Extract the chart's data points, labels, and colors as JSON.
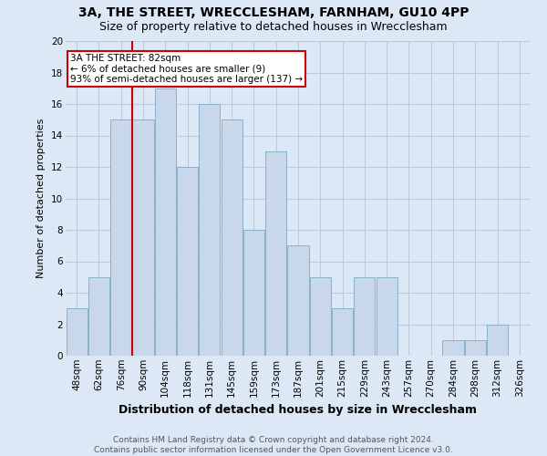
{
  "title1": "3A, THE STREET, WRECCLESHAM, FARNHAM, GU10 4PP",
  "title2": "Size of property relative to detached houses in Wrecclesham",
  "xlabel": "Distribution of detached houses by size in Wrecclesham",
  "ylabel": "Number of detached properties",
  "footer1": "Contains HM Land Registry data © Crown copyright and database right 2024.",
  "footer2": "Contains public sector information licensed under the Open Government Licence v3.0.",
  "categories": [
    "48sqm",
    "62sqm",
    "76sqm",
    "90sqm",
    "104sqm",
    "118sqm",
    "131sqm",
    "145sqm",
    "159sqm",
    "173sqm",
    "187sqm",
    "201sqm",
    "215sqm",
    "229sqm",
    "243sqm",
    "257sqm",
    "270sqm",
    "284sqm",
    "298sqm",
    "312sqm",
    "326sqm"
  ],
  "values": [
    3,
    5,
    15,
    15,
    17,
    12,
    16,
    15,
    8,
    13,
    7,
    5,
    3,
    5,
    5,
    0,
    0,
    1,
    1,
    2,
    0
  ],
  "bar_color": "#c8d8ea",
  "bar_edge_color": "#7bacc4",
  "vline_color": "#cc0000",
  "annotation_text1": "3A THE STREET: 82sqm",
  "annotation_text2": "← 6% of detached houses are smaller (9)",
  "annotation_text3": "93% of semi-detached houses are larger (137) →",
  "annotation_box_color": "white",
  "annotation_box_edge": "#cc0000",
  "ylim": [
    0,
    20
  ],
  "background_color": "#dce8f5",
  "grid_color": "#b8cce0",
  "title1_fontsize": 10,
  "title2_fontsize": 9,
  "xlabel_fontsize": 9,
  "ylabel_fontsize": 8,
  "tick_fontsize": 7.5,
  "ann_fontsize": 7.5,
  "footer_fontsize": 6.5,
  "vline_x_bar": 2.5
}
